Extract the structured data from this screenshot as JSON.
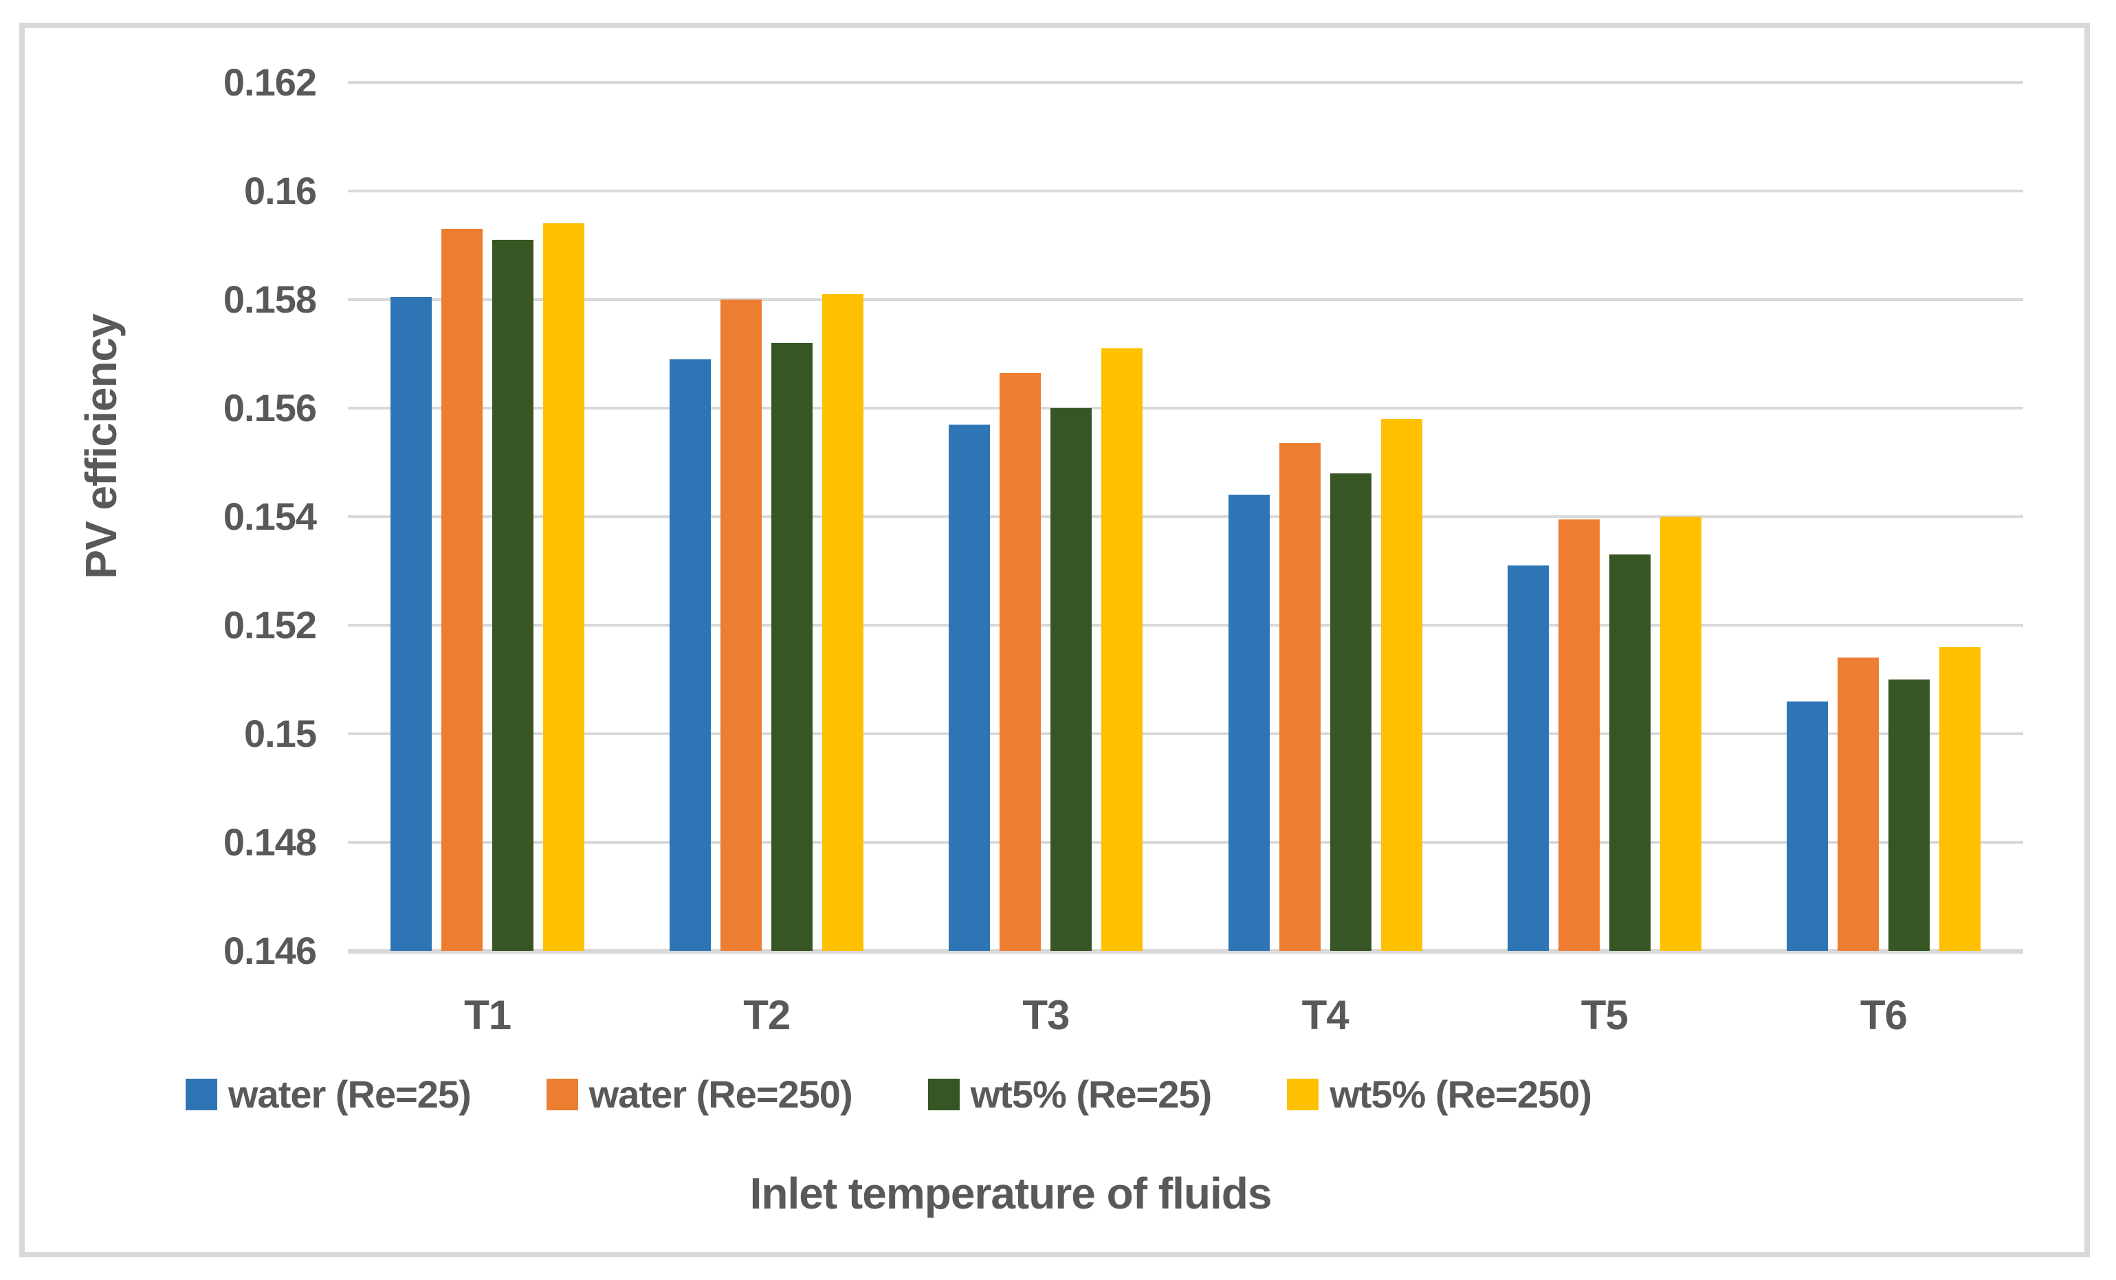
{
  "figure": {
    "y_axis_title": "PV efficiency",
    "x_axis_title": "Inlet temperature of fluids",
    "y_ticks": [
      "0.162",
      "0.16",
      "0.158",
      "0.156",
      "0.154",
      "0.152",
      "0.15",
      "0.148",
      "0.146"
    ],
    "text_color": "#595959",
    "gridline_color": "#D9D9D9",
    "frame_color": "#D9D9D9",
    "background_color": "#FFFFFF"
  },
  "chart_data": {
    "type": "bar",
    "categories": [
      "T1",
      "T2",
      "T3",
      "T4",
      "T5",
      "T6"
    ],
    "series": [
      {
        "name": "water (Re=25)",
        "color": "#2E75B6",
        "values": [
          0.15805,
          0.1569,
          0.1557,
          0.1544,
          0.1531,
          0.1506
        ]
      },
      {
        "name": "water (Re=250)",
        "color": "#ED7D31",
        "values": [
          0.1593,
          0.158,
          0.15665,
          0.15535,
          0.15395,
          0.1514
        ]
      },
      {
        "name": "wt5% (Re=25)",
        "color": "#375623",
        "values": [
          0.1591,
          0.1572,
          0.156,
          0.1548,
          0.1533,
          0.151
        ]
      },
      {
        "name": "wt5% (Re=250)",
        "color": "#FFC000",
        "values": [
          0.1594,
          0.1581,
          0.1571,
          0.1558,
          0.154,
          0.1516
        ]
      }
    ],
    "title": "",
    "xlabel": "Inlet temperature of fluids",
    "ylabel": "PV efficiency",
    "ylim": [
      0.146,
      0.162
    ],
    "ytick_step": 0.002,
    "grid": true,
    "legend_position": "bottom",
    "legend_entries": [
      "water (Re=25)",
      "water (Re=250)",
      "wt5% (Re=25)",
      "wt5% (Re=250)"
    ]
  }
}
